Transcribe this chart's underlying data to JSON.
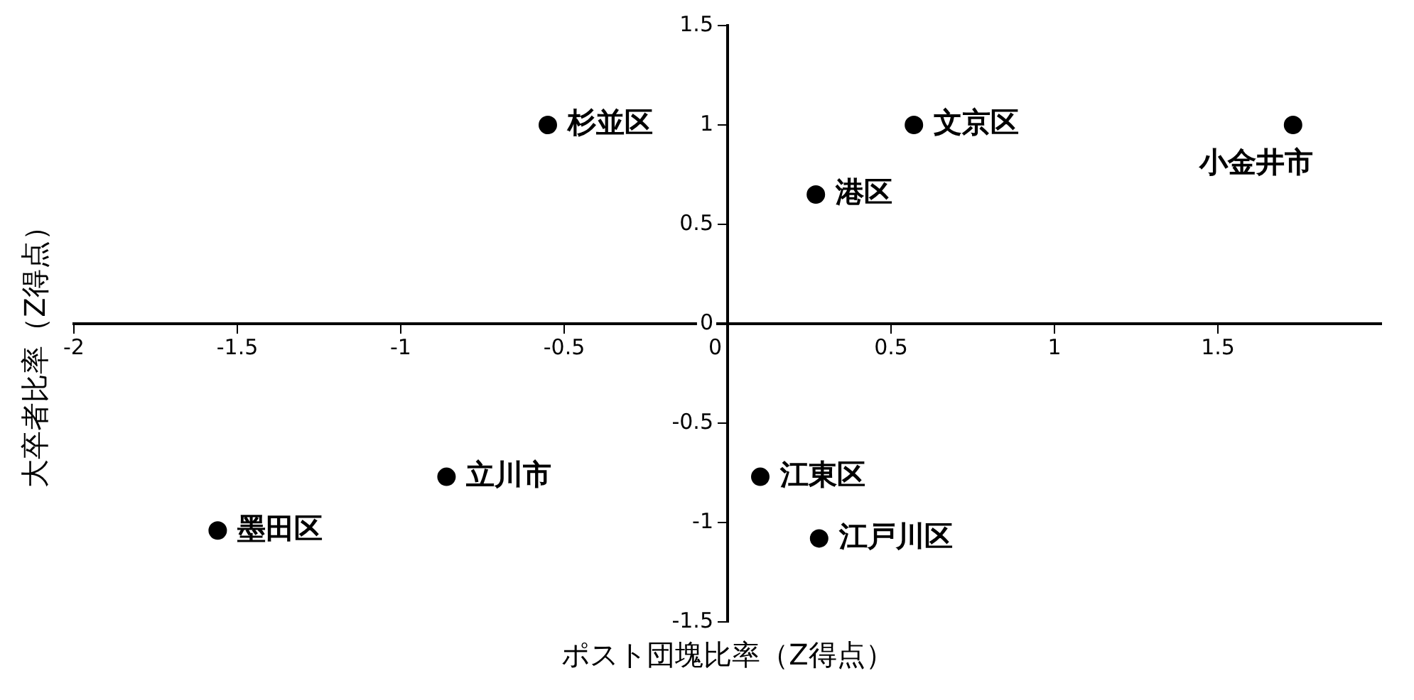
{
  "chart_data": {
    "type": "scatter",
    "xlabel": "ポスト団塊比率（Z得点）",
    "ylabel": "大卒者比率（Z得点）",
    "x": [
      -0.55,
      0.57,
      1.73,
      0.27,
      -0.86,
      -1.56,
      0.1,
      0.28
    ],
    "values": [
      1.0,
      1.0,
      1.0,
      0.65,
      -0.77,
      -1.04,
      -0.77,
      -1.08
    ],
    "color": "#000000",
    "marker": "circle",
    "grid": false,
    "legend": false,
    "xlim": [
      -2,
      2
    ],
    "xticks": [
      -2,
      -1.5,
      -1,
      -0.5,
      0,
      0.5,
      1,
      1.5
    ],
    "ylim": [
      -1.5,
      1.5
    ],
    "yticks": [
      -1.5,
      -1,
      -0.5,
      0,
      0.5,
      1,
      1.5
    ],
    "annotations": [
      {
        "text": "杉並区",
        "x": -0.55,
        "y": 1.0
      },
      {
        "text": "文京区",
        "x": 0.57,
        "y": 1.0
      },
      {
        "text": "小金井市",
        "x": 1.73,
        "y": 1.0
      },
      {
        "text": "港区",
        "x": 0.27,
        "y": 0.65
      },
      {
        "text": "立川市",
        "x": -0.86,
        "y": -0.77
      },
      {
        "text": "墨田区",
        "x": -1.56,
        "y": -1.04
      },
      {
        "text": "江東区",
        "x": 0.1,
        "y": -0.77
      },
      {
        "text": "江戸川区",
        "x": 0.28,
        "y": -1.08
      }
    ]
  }
}
